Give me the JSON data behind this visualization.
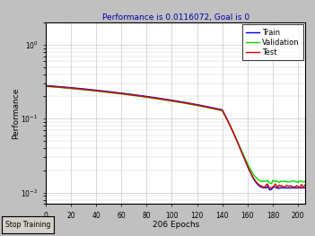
{
  "title": "Performance is 0.0116072, Goal is 0",
  "xlabel": "206 Epochs",
  "ylabel": "Performance",
  "xlim": [
    0,
    206
  ],
  "y_start": 0.28,
  "y_end_train": 0.0116072,
  "y_end_val": 0.014,
  "y_end_test": 0.012,
  "train_color": "#0000dd",
  "val_color": "#00dd00",
  "test_color": "#dd0000",
  "bg_color": "#c0c0c0",
  "plot_bg": "#ffffff",
  "legend_labels": [
    "Train",
    "Validation",
    "Test"
  ],
  "xticks": [
    0,
    20,
    40,
    60,
    80,
    100,
    120,
    140,
    160,
    180,
    200
  ],
  "button_text": "Stop Training",
  "ymin": 0.007,
  "ymax": 2.0
}
